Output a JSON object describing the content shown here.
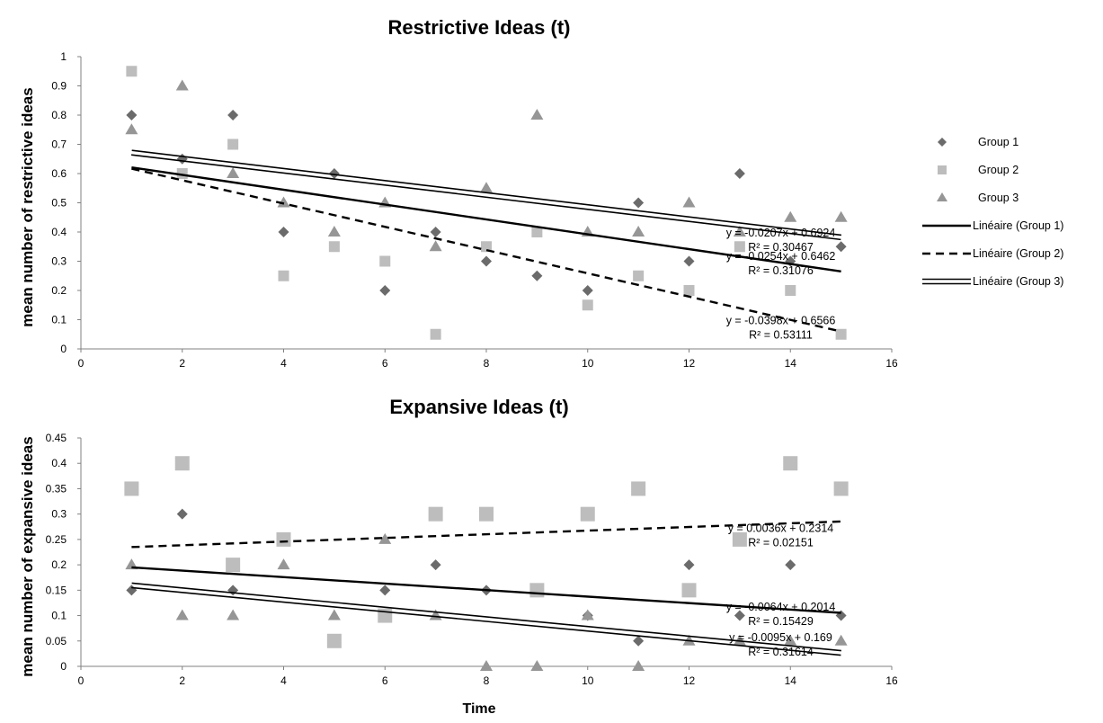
{
  "chart_data": [
    {
      "type": "scatter",
      "title": "Restrictive Ideas (t)",
      "xlabel": "",
      "ylabel": "mean number of restrictive ideas",
      "xlim": [
        0,
        16
      ],
      "ylim": [
        0,
        1
      ],
      "xticks": [
        "0",
        "2",
        "4",
        "6",
        "8",
        "10",
        "12",
        "14",
        "16"
      ],
      "yticks": [
        "0",
        "0.1",
        "0.2",
        "0.3",
        "0.4",
        "0.5",
        "0.6",
        "0.7",
        "0.8",
        "0.9",
        "1"
      ],
      "grid": false,
      "legend_position": "right",
      "series": [
        {
          "name": "Group 1",
          "marker": "diamond",
          "color": "#6b6b6b",
          "x": [
            1,
            2,
            3,
            4,
            5,
            6,
            7,
            8,
            9,
            10,
            11,
            12,
            13,
            14,
            15
          ],
          "y": [
            0.8,
            0.65,
            0.8,
            0.4,
            0.6,
            0.2,
            0.4,
            0.3,
            0.25,
            0.2,
            0.5,
            0.3,
            0.6,
            0.3,
            0.35
          ]
        },
        {
          "name": "Group 2",
          "marker": "square",
          "color": "#bdbdbd",
          "x": [
            1,
            2,
            3,
            4,
            5,
            6,
            7,
            8,
            9,
            10,
            11,
            12,
            13,
            14,
            15
          ],
          "y": [
            0.95,
            0.6,
            0.7,
            0.25,
            0.35,
            0.3,
            0.05,
            0.35,
            0.4,
            0.15,
            0.25,
            0.2,
            0.35,
            0.2,
            0.05
          ]
        },
        {
          "name": "Group 3",
          "marker": "triangle",
          "color": "#969696",
          "x": [
            1,
            2,
            3,
            4,
            5,
            6,
            7,
            8,
            9,
            10,
            11,
            12,
            13,
            14,
            15
          ],
          "y": [
            0.75,
            0.9,
            0.6,
            0.5,
            0.4,
            0.5,
            0.35,
            0.55,
            0.8,
            0.4,
            0.4,
            0.5,
            0.4,
            0.45,
            0.45
          ]
        }
      ],
      "trendlines": [
        {
          "name": "Linéaire (Group 1)",
          "style": "solid",
          "slope": -0.0254,
          "intercept": 0.6462,
          "equation": "y = -0.0254x + 0.6462",
          "r2": "R² = 0.31076"
        },
        {
          "name": "Linéaire (Group 2)",
          "style": "dashed",
          "slope": -0.0398,
          "intercept": 0.6566,
          "equation": "y = -0.0398x + 0.6566",
          "r2": "R² = 0.53111"
        },
        {
          "name": "Linéaire (Group 3)",
          "style": "double",
          "slope": -0.0207,
          "intercept": 0.6924,
          "equation": "y = -0.0207x + 0.6924",
          "r2": "R² = 0.30467"
        }
      ]
    },
    {
      "type": "scatter",
      "title": "Expansive Ideas (t)",
      "xlabel": "Time",
      "ylabel": "mean number of expansive ideas",
      "xlim": [
        0,
        16
      ],
      "ylim": [
        0,
        0.45
      ],
      "xticks": [
        "0",
        "2",
        "4",
        "6",
        "8",
        "10",
        "12",
        "14",
        "16"
      ],
      "yticks": [
        "0",
        "0.05",
        "0.1",
        "0.15",
        "0.2",
        "0.25",
        "0.3",
        "0.35",
        "0.4",
        "0.45"
      ],
      "grid": false,
      "series": [
        {
          "name": "Group 1",
          "marker": "diamond",
          "color": "#6b6b6b",
          "x": [
            1,
            2,
            3,
            4,
            5,
            6,
            7,
            8,
            9,
            10,
            11,
            12,
            13,
            14,
            15
          ],
          "y": [
            0.15,
            0.3,
            0.15,
            0.25,
            0.05,
            0.15,
            0.2,
            0.15,
            0.15,
            0.1,
            0.05,
            0.2,
            0.1,
            0.2,
            0.1
          ]
        },
        {
          "name": "Group 2",
          "marker": "square",
          "color": "#bdbdbd",
          "x": [
            1,
            2,
            3,
            4,
            5,
            6,
            7,
            8,
            9,
            10,
            11,
            12,
            13,
            14,
            15
          ],
          "y": [
            0.35,
            0.4,
            0.2,
            0.25,
            0.05,
            0.1,
            0.3,
            0.3,
            0.15,
            0.3,
            0.35,
            0.15,
            0.25,
            0.4,
            0.35
          ]
        },
        {
          "name": "Group 3",
          "marker": "triangle",
          "color": "#969696",
          "x": [
            1,
            2,
            3,
            4,
            5,
            6,
            7,
            8,
            9,
            10,
            11,
            12,
            13,
            14,
            15
          ],
          "y": [
            0.2,
            0.1,
            0.1,
            0.2,
            0.1,
            0.25,
            0.1,
            0,
            0,
            0.1,
            0,
            0.05,
            0.05,
            0.05,
            0.05
          ]
        }
      ],
      "trendlines": [
        {
          "name": "Linéaire (Group 1)",
          "style": "solid",
          "slope": -0.0064,
          "intercept": 0.2014,
          "equation": "y = -0.0064x + 0.2014",
          "r2": "R² = 0.15429"
        },
        {
          "name": "Linéaire (Group 2)",
          "style": "dashed",
          "slope": 0.0036,
          "intercept": 0.2314,
          "equation": "y = 0.0036x + 0.2314",
          "r2": "R² = 0.02151"
        },
        {
          "name": "Linéaire (Group 3)",
          "style": "double",
          "slope": -0.0095,
          "intercept": 0.169,
          "equation": "y = -0.0095x + 0.169",
          "r2": "R² = 0.31614"
        }
      ]
    }
  ],
  "legend": {
    "items": [
      {
        "label": "Group 1",
        "kind": "diamond",
        "color": "#6b6b6b"
      },
      {
        "label": "Group 2",
        "kind": "square",
        "color": "#bdbdbd"
      },
      {
        "label": "Group 3",
        "kind": "triangle",
        "color": "#969696"
      },
      {
        "label": "Linéaire (Group 1)",
        "kind": "solid"
      },
      {
        "label": "Linéaire (Group 2)",
        "kind": "dashed"
      },
      {
        "label": "Linéaire (Group 3)",
        "kind": "double"
      }
    ]
  }
}
